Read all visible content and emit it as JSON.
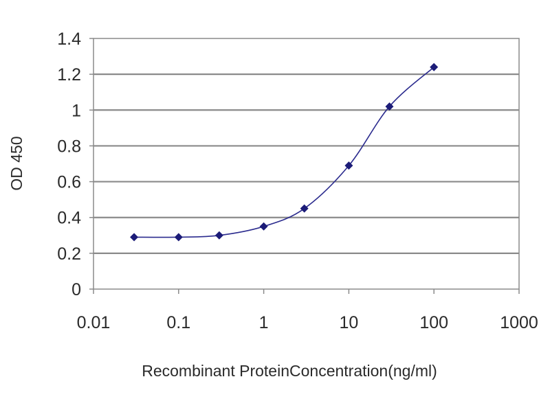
{
  "chart_data": {
    "type": "scatter",
    "xscale": "log",
    "xlabel": "Recombinant ProteinConcentration(ng/ml)",
    "ylabel": "OD 450",
    "xlim": [
      0.01,
      1000
    ],
    "ylim": [
      0,
      1.4
    ],
    "x_ticks": [
      0.01,
      0.1,
      1,
      10,
      100,
      1000
    ],
    "x_tick_labels": [
      "0.01",
      "0.1",
      "1",
      "10",
      "100",
      "1000"
    ],
    "y_ticks": [
      0,
      0.2,
      0.4,
      0.6,
      0.8,
      1,
      1.2,
      1.4
    ],
    "y_tick_labels": [
      "0",
      "0.2",
      "0.4",
      "0.6",
      "0.8",
      "1",
      "1.2",
      "1.4"
    ],
    "grid": "horizontal",
    "legend": "none",
    "series": [
      {
        "x": [
          0.03,
          0.1,
          0.3,
          1,
          3,
          10,
          30,
          100
        ],
        "y": [
          0.29,
          0.29,
          0.3,
          0.35,
          0.45,
          0.69,
          1.02,
          1.24
        ],
        "color": "#2b2b8e",
        "marker": "diamond",
        "line": "smooth"
      }
    ]
  }
}
